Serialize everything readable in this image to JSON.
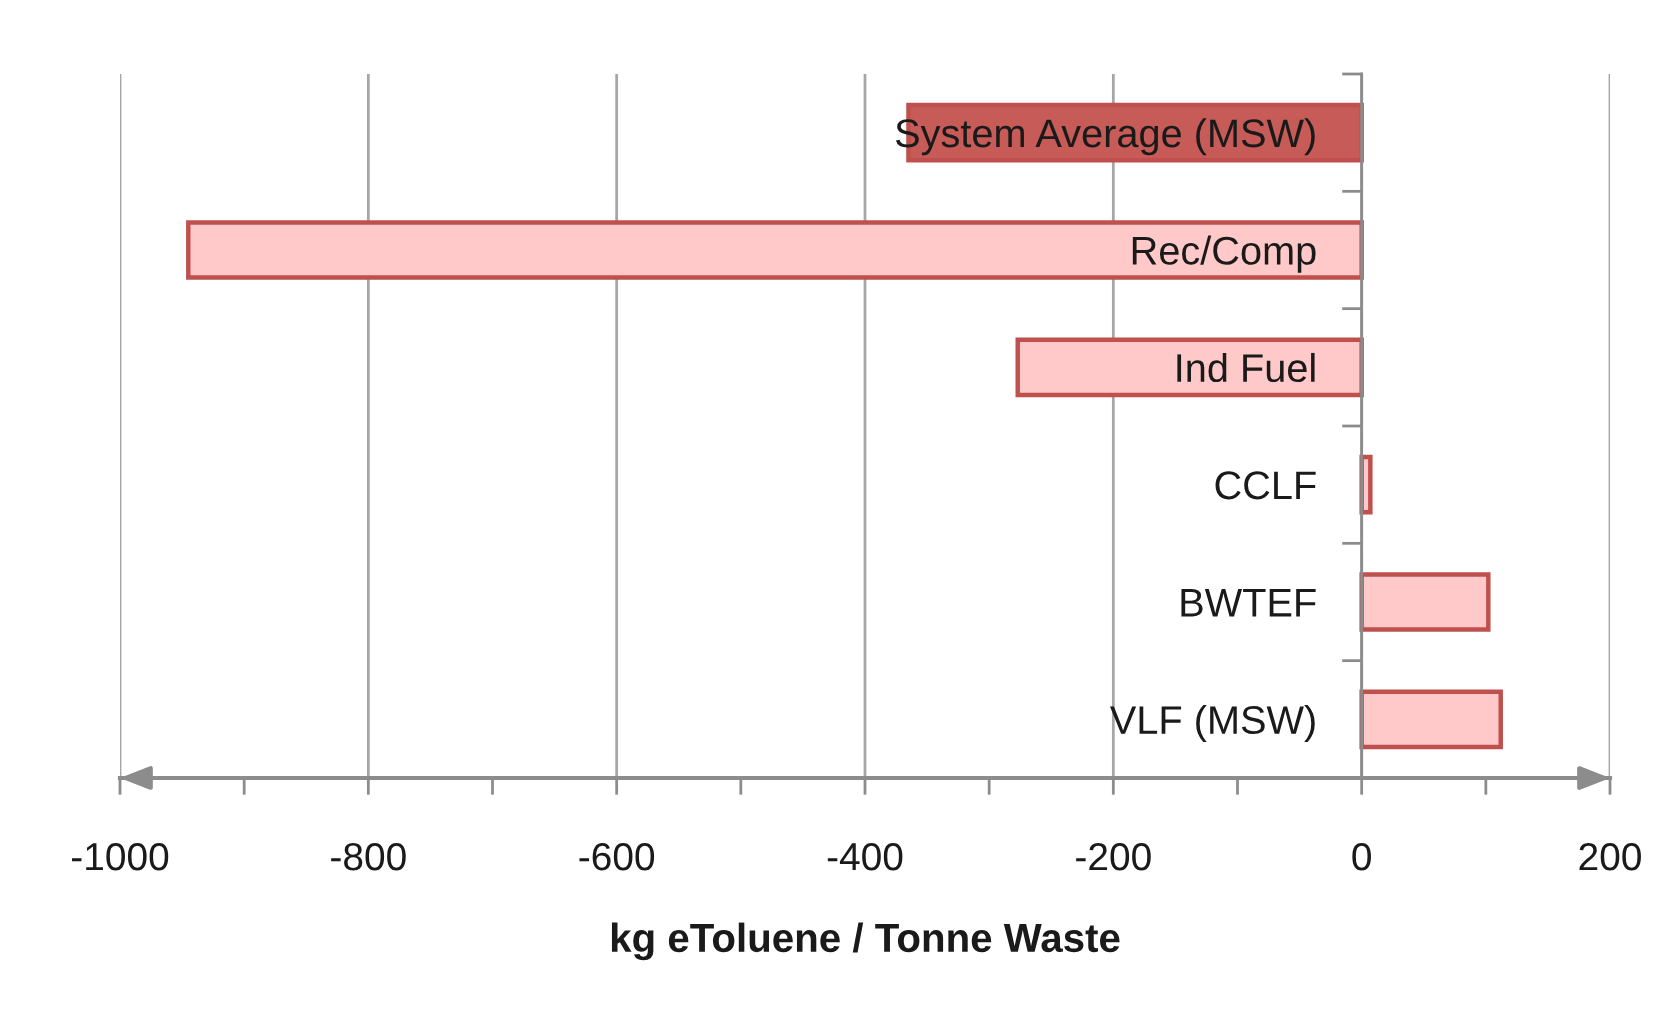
{
  "chart_data": {
    "type": "bar",
    "orientation": "horizontal",
    "categories": [
      "System Average (MSW)",
      "Rec/Comp",
      "Ind Fuel",
      "CCLF",
      "BWTEF",
      "VLF (MSW)"
    ],
    "values": [
      -365,
      -945,
      -277,
      7,
      102,
      112
    ],
    "colors": [
      "#c65b57",
      "#ffc9c9",
      "#ffc9c9",
      "#ffc9c9",
      "#ffc9c9",
      "#ffc9c9"
    ],
    "xlabel": "kg eToluene / Tonne Waste",
    "xlim": [
      -1000,
      200
    ],
    "xticks": [
      -1000,
      {
        "value": -900,
        "label": null
      },
      -800,
      {
        "value": -700,
        "label": null
      },
      -600,
      {
        "value": -500,
        "label": null
      },
      -400,
      {
        "value": -300,
        "label": null
      },
      -200,
      {
        "value": -100,
        "label": null
      },
      0,
      {
        "value": 100,
        "label": null
      },
      200
    ],
    "grid": "x"
  }
}
